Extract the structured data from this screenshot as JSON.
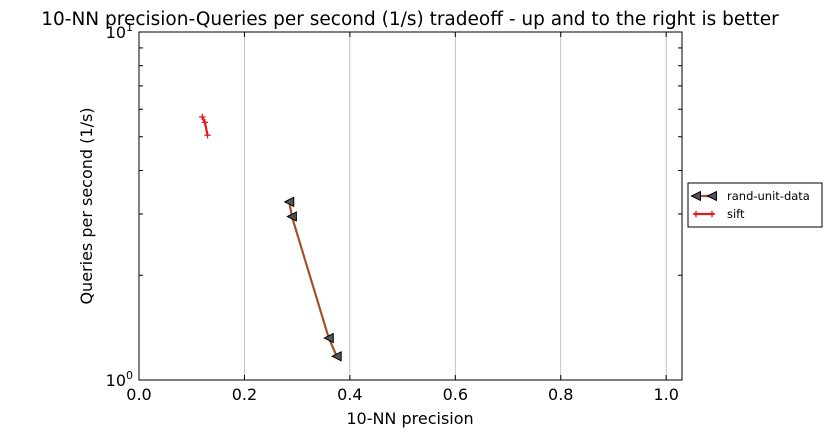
{
  "chart_data": {
    "type": "line",
    "title": "10-NN precision-Queries per second (1/s) tradeoff - up and to the right is better",
    "xlabel": "10-NN precision",
    "ylabel": "Queries per second (1/s)",
    "xlim": [
      0.0,
      1.03
    ],
    "ylim": [
      1.0,
      10.0
    ],
    "yscale": "log",
    "grid": "x-major",
    "legend_position": "outside-right",
    "x_ticks": [
      {
        "value": 0.0,
        "label": "0.0"
      },
      {
        "value": 0.2,
        "label": "0.2"
      },
      {
        "value": 0.4,
        "label": "0.4"
      },
      {
        "value": 0.6,
        "label": "0.6"
      },
      {
        "value": 0.8,
        "label": "0.8"
      },
      {
        "value": 1.0,
        "label": "1.0"
      }
    ],
    "y_ticks": [
      {
        "value": 1.0,
        "base": "10",
        "exp": "0"
      },
      {
        "value": 10.0,
        "base": "10",
        "exp": "1"
      }
    ],
    "series": [
      {
        "name": "rand-unit-data",
        "color": "#a0522d",
        "marker": "triangle-left",
        "points": [
          {
            "x": 0.285,
            "y": 3.25
          },
          {
            "x": 0.29,
            "y": 2.95
          },
          {
            "x": 0.36,
            "y": 1.32
          },
          {
            "x": 0.375,
            "y": 1.17
          }
        ]
      },
      {
        "name": "sift",
        "color": "#e31a1c",
        "marker": "plus",
        "points": [
          {
            "x": 0.12,
            "y": 5.7
          },
          {
            "x": 0.125,
            "y": 5.5
          },
          {
            "x": 0.13,
            "y": 5.05
          }
        ]
      }
    ]
  }
}
